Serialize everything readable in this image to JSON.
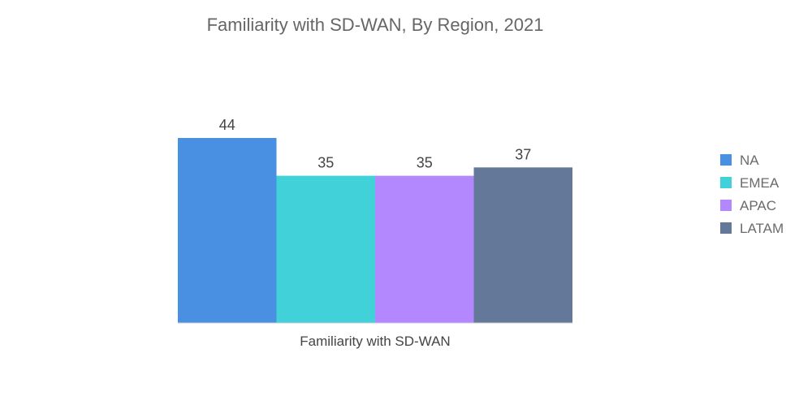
{
  "chart_data": {
    "type": "bar",
    "title": "Familiarity with SD-WAN, By Region, 2021",
    "xlabel": "",
    "ylabel": "",
    "categories": [
      "Familiarity with SD-WAN"
    ],
    "category_label": "Familiarity with SD-WAN",
    "ylim": [
      0,
      44
    ],
    "grid": false,
    "legend_position": "right",
    "series": [
      {
        "name": "NA",
        "values": [
          44
        ],
        "color": "#4a90e2"
      },
      {
        "name": "EMEA",
        "values": [
          35
        ],
        "color": "#41d1d9"
      },
      {
        "name": "APAC",
        "values": [
          35
        ],
        "color": "#b388ff"
      },
      {
        "name": "LATAM",
        "values": [
          37
        ],
        "color": "#647899"
      }
    ]
  }
}
